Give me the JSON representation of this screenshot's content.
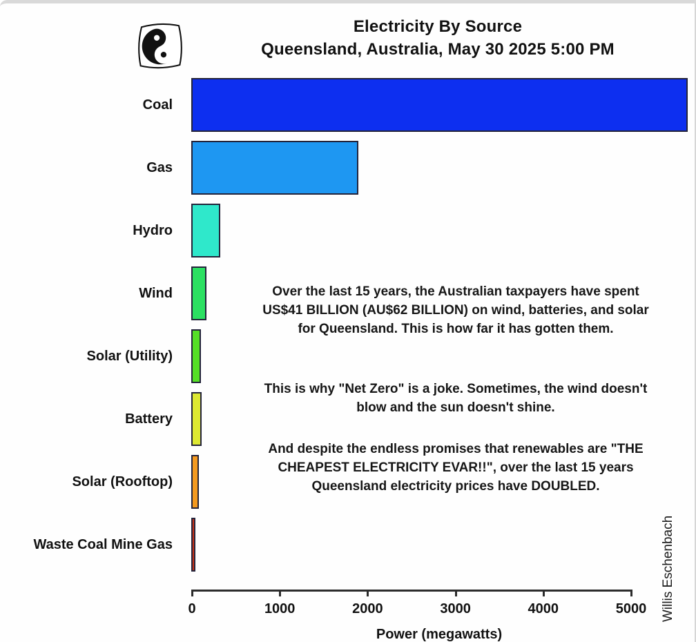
{
  "chart_data": {
    "type": "bar",
    "orientation": "horizontal",
    "title": "Electricity By Source",
    "subtitle": "Queensland, Australia, May 30 2025 5:00 PM",
    "xlabel": "Power (megawatts)",
    "xlim": [
      0,
      5000
    ],
    "x_ticks": [
      0,
      1000,
      2000,
      3000,
      4000,
      5000
    ],
    "categories": [
      "Coal",
      "Gas",
      "Hydro",
      "Wind",
      "Solar (Utility)",
      "Battery",
      "Solar (Rooftop)",
      "Waste Coal Mine Gas"
    ],
    "values_mw": [
      5650,
      1900,
      330,
      175,
      110,
      120,
      90,
      45
    ],
    "bar_colors": [
      "#0d2ff0",
      "#1e97f2",
      "#2fe8cb",
      "#2be062",
      "#55e026",
      "#dde832",
      "#f49a20",
      "#c93218"
    ],
    "grid": false,
    "legend": "none",
    "note": "Coal bar extends past the 5000 MW axis limit"
  },
  "annotations": {
    "spending": "Over the last 15 years, the Australian taxpayers have spent US$41 BILLION (AU$62 BILLION) on wind, batteries, and solar for Queensland. This is how far it has gotten them.",
    "net_zero": "This is why \"Net Zero\" is a joke. Sometimes, the wind doesn't blow and the sun doesn't shine.",
    "prices": "And despite the endless promises that renewables are \"THE CHEAPEST ELECTRICITY EVAR!!\", over the last 15 years Queensland electricity prices have DOUBLED."
  },
  "attribution": "Willis Eschenbach"
}
